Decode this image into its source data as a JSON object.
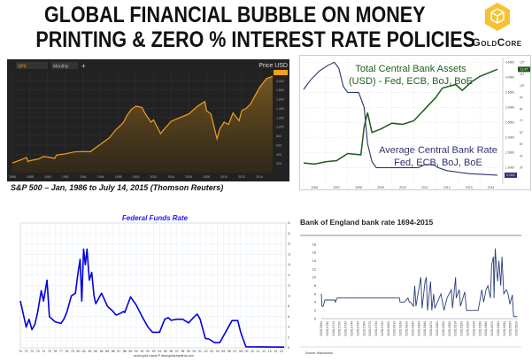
{
  "title": {
    "line1": "GLOBAL FINANCIAL BUBBLE ON MONEY",
    "line2": "PRINTING & ZERO % INTEREST RATE POLICIES"
  },
  "logo": {
    "text": "GoldCore",
    "color": "#f5c332"
  },
  "chart_data": [
    {
      "type": "area",
      "caption": "S&P 500 – Jan, 1986 to July 14, 2015 (Thomson Reuters)",
      "toolbar": {
        "symbol": "SPX",
        "interval": "Monthly"
      },
      "ylabel": "Price USD",
      "xlim": [
        1986,
        2015.5
      ],
      "ylim": [
        0,
        2200
      ],
      "yticks": [
        200,
        400,
        600,
        800,
        1000,
        1200,
        1400,
        1600,
        1800,
        2000
      ],
      "xticks": [
        1986,
        1988,
        1990,
        1992,
        1994,
        1996,
        1998,
        2000,
        2002,
        2004,
        2006,
        2008,
        2010,
        2012,
        2014
      ],
      "color": "#f0a020",
      "background": "#222222",
      "series": [
        {
          "x": [
            1986,
            1987,
            1987.6,
            1987.8,
            1988,
            1989,
            1989.5,
            1990,
            1990.8,
            1991,
            1992,
            1993,
            1994,
            1994.9,
            1995,
            1996,
            1997,
            1997.8,
            1998,
            1998.6,
            1999,
            1999.5,
            2000,
            2000.7,
            2001,
            2001.7,
            2002,
            2002.8,
            2003,
            2004,
            2005,
            2006,
            2007,
            2007.8,
            2008,
            2008.5,
            2009.2,
            2009.5,
            2010,
            2010.5,
            2011,
            2011.7,
            2012,
            2012.5,
            2013,
            2014,
            2014.8,
            2015.5
          ],
          "y": [
            210,
            280,
            330,
            240,
            260,
            300,
            350,
            340,
            310,
            380,
            410,
            450,
            460,
            455,
            480,
            620,
            760,
            950,
            980,
            1100,
            1250,
            1380,
            1450,
            1420,
            1300,
            1100,
            1150,
            850,
            900,
            1120,
            1200,
            1280,
            1450,
            1550,
            1350,
            1280,
            735,
            950,
            1100,
            1050,
            1300,
            1130,
            1350,
            1400,
            1500,
            1850,
            2050,
            2100
          ]
        }
      ]
    },
    {
      "type": "line",
      "labels": {
        "assets": "Total Central Bank Assets",
        "assets_sub": "(USD) - Fed, ECB, BoJ, BoE",
        "rate": "Average Central Bank Rate",
        "rate_sub": "Fed, ECB, BoJ, BoE"
      },
      "xticks": [
        "2006",
        "2007",
        "2008",
        "2009",
        "2010",
        "2011",
        "2012",
        "2013",
        "2014"
      ],
      "xlim": [
        2006,
        2015
      ],
      "left_ylim": [
        0.6,
        4.6
      ],
      "left_yticks": [
        "1.0000",
        "1.5000",
        "2.0000",
        "2.5000",
        "3.0000",
        "3.5000",
        "4.0000",
        "4.5000"
      ],
      "right_yticks": [
        "3T",
        "4T",
        "5T",
        "6T",
        "7T",
        "8T",
        "9T",
        "10T",
        "11T",
        "12T"
      ],
      "rate_badge": "0.7437",
      "assets_badge": "11.4T",
      "series": [
        {
          "name": "Average Central Bank Rate",
          "color": "#2e2f6e",
          "x": [
            2006,
            2006.3,
            2006.7,
            2007.1,
            2007.4,
            2007.6,
            2007.8,
            2008,
            2008.5,
            2008.75,
            2008.9,
            2009.1,
            2009.3,
            2011.2,
            2011.5,
            2011.9,
            2012.1,
            2012.5,
            2013,
            2013.5,
            2014.8
          ],
          "y": [
            3.6,
            3.9,
            4.2,
            4.4,
            4.5,
            4.3,
            3.7,
            3.5,
            3.5,
            3.0,
            1.8,
            1.2,
            1.0,
            1.0,
            1.1,
            1.1,
            1.0,
            0.9,
            0.85,
            0.8,
            0.75
          ]
        },
        {
          "name": "Total Central Bank Assets",
          "color": "#1e5c1e",
          "x": [
            2006,
            2006.5,
            2007,
            2007.5,
            2008,
            2008.6,
            2008.75,
            2008.9,
            2009.1,
            2009.5,
            2010,
            2010.5,
            2011,
            2011.5,
            2012,
            2012.3,
            2012.9,
            2013.2,
            2013.6,
            2014,
            2014.8
          ],
          "y": [
            3.4,
            3.3,
            3.5,
            3.6,
            4.2,
            4.1,
            6.5,
            7.7,
            6.0,
            6.3,
            6.8,
            6.7,
            7.0,
            8.0,
            9.0,
            9.8,
            10.1,
            9.6,
            10.3,
            10.8,
            11.4
          ]
        }
      ]
    },
    {
      "type": "line",
      "title": "Federal Funds Rate",
      "subtitle": "Jul-10 2015",
      "close": "Close = 0.13",
      "footer": "world gold charts ® www.goldchartsrus.com",
      "xlim": [
        1970,
        2015.8
      ],
      "ylim": [
        0,
        24
      ],
      "yticks": [
        0,
        2,
        4,
        6,
        8,
        10,
        12,
        14,
        16,
        18,
        20,
        22,
        24
      ],
      "xticks": [
        "70",
        "71",
        "72",
        "73",
        "74",
        "75",
        "76",
        "77",
        "78",
        "79",
        "80",
        "81",
        "82",
        "83",
        "84",
        "85",
        "86",
        "87",
        "88",
        "89",
        "90",
        "91",
        "92",
        "93",
        "94",
        "95",
        "96",
        "97",
        "98",
        "99",
        "00",
        "01",
        "02",
        "03",
        "04",
        "05",
        "06",
        "07",
        "08",
        "09",
        "10",
        "11",
        "12",
        "13",
        "14",
        "15"
      ],
      "color": "#0000e0",
      "series": [
        {
          "x": [
            1970,
            1970.5,
            1971,
            1971.5,
            1972,
            1972.5,
            1973,
            1973.6,
            1974,
            1974.6,
            1975,
            1975.5,
            1976,
            1977,
            1977.5,
            1978,
            1978.8,
            1979.5,
            1979.9,
            1980.3,
            1980.6,
            1980.9,
            1981.2,
            1981.5,
            1981.9,
            1982.3,
            1982.7,
            1983,
            1984,
            1984.9,
            1985,
            1986,
            1986.5,
            1987,
            1987.8,
            1988,
            1989,
            1990,
            1991,
            1992,
            1992.8,
            1994,
            1994.9,
            1995.5,
            1996,
            1997,
            1998,
            1999,
            2000,
            2000.5,
            2001,
            2001.9,
            2002.5,
            2003.5,
            2004.4,
            2006.5,
            2007.5,
            2008,
            2008.9,
            2015.5
          ],
          "y": [
            9,
            6.5,
            4,
            5.5,
            3.5,
            4.5,
            7,
            11,
            9,
            13,
            6,
            5.5,
            5,
            4.7,
            5.5,
            6.8,
            10,
            10.5,
            14,
            17,
            9,
            19,
            16,
            19,
            13,
            14.5,
            10,
            8.5,
            10.5,
            8.3,
            8,
            7,
            6.3,
            6.5,
            7,
            6.8,
            9.8,
            8.2,
            6,
            4,
            3,
            3,
            5.5,
            5.8,
            5.3,
            5.5,
            5.5,
            4.8,
            6,
            6.5,
            5.5,
            1.8,
            1.7,
            1,
            1,
            5.25,
            5.25,
            3,
            0.2,
            0.13
          ]
        }
      ]
    },
    {
      "type": "line",
      "title": "Bank of England bank rate 1694-2015",
      "source": "Source: Macrobond",
      "xlim": [
        1694,
        2016
      ],
      "ylim": [
        0,
        18
      ],
      "yticks": [
        0,
        2,
        4,
        6,
        8,
        10,
        12,
        14,
        16,
        18
      ],
      "xticks": [
        "01/01/1694",
        "01/01/1704",
        "01/01/1714",
        "01/01/1724",
        "01/01/1734",
        "01/01/1744",
        "01/01/1754",
        "01/01/1764",
        "01/01/1774",
        "01/01/1784",
        "01/01/1794",
        "01/01/1804",
        "01/01/1814",
        "01/01/1824",
        "01/01/1834",
        "01/01/1844",
        "01/01/1854",
        "01/01/1864",
        "01/01/1874",
        "01/01/1884",
        "01/01/1894",
        "01/01/1904",
        "01/01/1914",
        "01/01/1924",
        "01/01/1934",
        "01/01/1944",
        "01/01/1954",
        "01/01/1964",
        "01/01/1974",
        "01/01/1984",
        "01/01/1994",
        "01/01/2004",
        "01/01/2014"
      ],
      "color": "#2a3f7a",
      "series": [
        {
          "x": [
            1694,
            1695,
            1697,
            1700,
            1716,
            1717,
            1720,
            1822,
            1823,
            1830,
            1836,
            1838,
            1840,
            1845,
            1847,
            1849,
            1857,
            1859,
            1864,
            1866,
            1868,
            1873,
            1875,
            1878,
            1880,
            1890,
            1895,
            1900,
            1907,
            1909,
            1914,
            1915,
            1920,
            1922,
            1929,
            1932,
            1951,
            1957,
            1960,
            1964,
            1967,
            1971,
            1973,
            1976,
            1977,
            1979,
            1981,
            1983,
            1985,
            1988,
            1990,
            1993,
            1997,
            2000,
            2003,
            2007,
            2009,
            2015
          ],
          "y": [
            6,
            3,
            3,
            4.5,
            4.5,
            4,
            5,
            5,
            4,
            4,
            5,
            4,
            4,
            3,
            8,
            3,
            10,
            2.5,
            9,
            10,
            2,
            9,
            2,
            6,
            2.5,
            6,
            2,
            5,
            7,
            2.5,
            10,
            5,
            7,
            3,
            6.5,
            2,
            2,
            7,
            4,
            7,
            8,
            5,
            13,
            15,
            5,
            17,
            12,
            9,
            14,
            8,
            15,
            6,
            7,
            6,
            3.5,
            5.75,
            0.5,
            0.5
          ]
        }
      ]
    }
  ]
}
